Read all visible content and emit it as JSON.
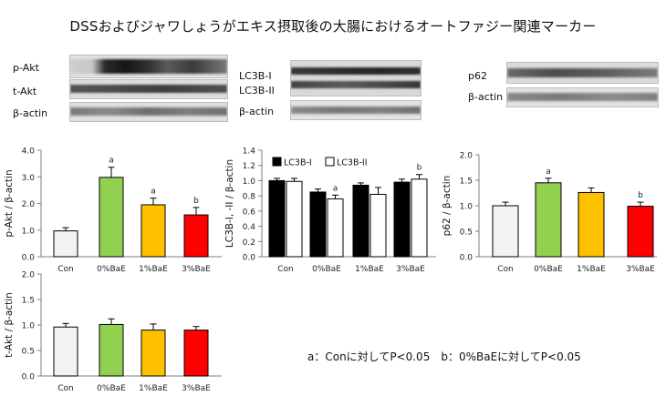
{
  "title": "DSSおよびジャワしょうがエキス摂取後の大腸におけるオートファジー関連マーカー",
  "blots": {
    "pakt": "p-Akt",
    "takt": "t-Akt",
    "bactin1": "β-actin",
    "lc3b1": "LC3B-I",
    "lc3b2": "LC3B-II",
    "bactin2": "β-actin",
    "p62": "p62",
    "bactin3": "β-actin"
  },
  "colors": {
    "Con": "#f2f2f2",
    "0%BaE": "#92d050",
    "1%BaE": "#ffc000",
    "3%BaE": "#ff0000",
    "LC3B-I": "#000000",
    "LC3B-II": "#ffffff"
  },
  "chart_data": [
    {
      "id": "pakt",
      "type": "bar",
      "ylabel": "p-Akt / β-actin",
      "ylim": [
        0,
        4
      ],
      "yticks": [
        "0.0",
        "1.0",
        "2.0",
        "3.0",
        "4.0"
      ],
      "categories": [
        "Con",
        "0%BaE",
        "1%BaE",
        "3%BaE"
      ],
      "values": [
        0.97,
        2.98,
        1.95,
        1.57
      ],
      "errors": [
        0.12,
        0.38,
        0.25,
        0.28
      ],
      "annotations": [
        "",
        "a",
        "a",
        "b"
      ]
    },
    {
      "id": "lc3b",
      "type": "bar",
      "ylabel": "LC3B-I, -II / β-actin",
      "ylim": [
        0,
        1.4
      ],
      "yticks": [
        "0.0",
        "0.2",
        "0.4",
        "0.6",
        "0.8",
        "1.0",
        "1.2",
        "1.4"
      ],
      "categories": [
        "Con",
        "0%BaE",
        "1%BaE",
        "3%BaE"
      ],
      "series": [
        {
          "name": "LC3B-I",
          "values": [
            1.0,
            0.85,
            0.94,
            0.98
          ],
          "errors": [
            0.03,
            0.04,
            0.03,
            0.04
          ],
          "annotations": [
            "",
            "",
            "",
            ""
          ]
        },
        {
          "name": "LC3B-II",
          "values": [
            0.99,
            0.76,
            0.82,
            1.02
          ],
          "errors": [
            0.04,
            0.05,
            0.09,
            0.06
          ],
          "annotations": [
            "",
            "a",
            "",
            "b"
          ]
        }
      ],
      "legend": "top-left"
    },
    {
      "id": "p62",
      "type": "bar",
      "ylabel": "p62 / β-actin",
      "ylim": [
        0,
        2
      ],
      "yticks": [
        "0.0",
        "0.5",
        "1.0",
        "1.5",
        "2.0"
      ],
      "categories": [
        "Con",
        "0%BaE",
        "1%BaE",
        "3%BaE"
      ],
      "values": [
        1.0,
        1.45,
        1.26,
        0.99
      ],
      "errors": [
        0.07,
        0.09,
        0.09,
        0.08
      ],
      "annotations": [
        "",
        "a",
        "",
        "b"
      ]
    },
    {
      "id": "takt",
      "type": "bar",
      "ylabel": "t-Akt / β-actin",
      "ylim": [
        0,
        2
      ],
      "yticks": [
        "0.0",
        "0.5",
        "1.0",
        "1.5",
        "2.0"
      ],
      "categories": [
        "Con",
        "0%BaE",
        "1%BaE",
        "3%BaE"
      ],
      "values": [
        0.96,
        1.01,
        0.9,
        0.9
      ],
      "errors": [
        0.07,
        0.11,
        0.12,
        0.07
      ],
      "annotations": [
        "",
        "",
        "",
        ""
      ]
    }
  ],
  "footnote": "a：Conに対してP<0.05　b：0%BaEに対してP<0.05"
}
